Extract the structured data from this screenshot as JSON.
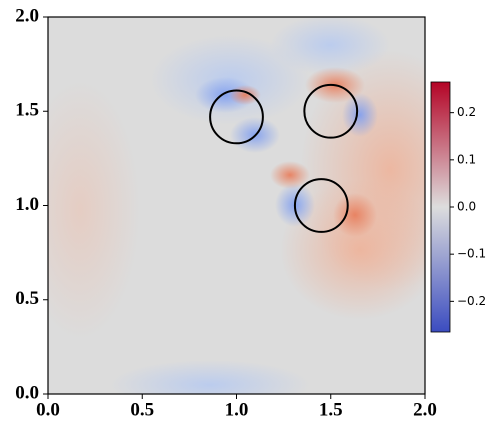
{
  "chart_data": {
    "type": "heatmap",
    "xlim": [
      0,
      2
    ],
    "ylim": [
      0,
      2
    ],
    "xticks": [
      {
        "value": 0,
        "label": "0.0"
      },
      0.5,
      {
        "value": 1,
        "label": "1.0"
      },
      1.5,
      {
        "value": 2,
        "label": "2.0"
      }
    ],
    "yticks": [
      {
        "value": 0,
        "label": "0.0"
      },
      0.5,
      {
        "value": 1,
        "label": "1.0"
      },
      1.5,
      {
        "value": 2,
        "label": "2.0"
      }
    ],
    "circles": [
      {
        "x": 1.0,
        "y": 1.47,
        "r": 0.14
      },
      {
        "x": 1.5,
        "y": 1.5,
        "r": 0.14
      },
      {
        "x": 1.45,
        "y": 1.0,
        "r": 0.14
      }
    ],
    "circle_color": "#000000",
    "clim": [
      -0.265,
      0.265
    ],
    "cticks": [
      0.2,
      0.1,
      {
        "value": 0,
        "label": "0.0"
      },
      {
        "value": -0.1,
        "label": "−0.1"
      },
      {
        "value": -0.2,
        "label": "−0.2"
      }
    ],
    "colormap": [
      "#3b4cc0",
      "#dddddd",
      "#b40426"
    ]
  }
}
